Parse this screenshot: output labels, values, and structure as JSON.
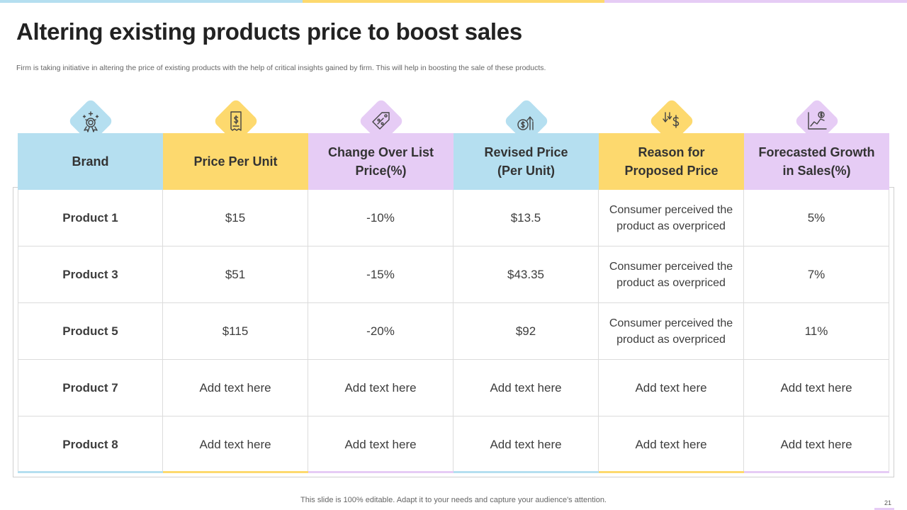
{
  "colors": {
    "blue": "#b5dff0",
    "yellow": "#fdd96e",
    "purple": "#e6ccf5",
    "icon_stroke": "#444444"
  },
  "title": "Altering existing products price to boost sales",
  "subtitle": "Firm is taking initiative in altering the price of existing products with the help of critical insights gained by firm. This will help in boosting the sale of these products.",
  "table": {
    "headers": [
      {
        "label": "Brand",
        "icon": "award-medal-icon",
        "color": "blue"
      },
      {
        "label": "Price Per Unit",
        "icon": "price-tag-receipt-icon",
        "color": "yellow"
      },
      {
        "label": "Change Over List\nPrice(%)",
        "icon": "discount-tag-icon",
        "color": "purple"
      },
      {
        "label": "Revised Price\n(Per Unit)",
        "icon": "coin-arrow-up-icon",
        "color": "blue"
      },
      {
        "label": "Reason for\nProposed  Price",
        "icon": "dollar-arrows-down-icon",
        "color": "yellow"
      },
      {
        "label": "Forecasted Growth\nin Sales(%)",
        "icon": "growth-chart-icon",
        "color": "purple"
      }
    ],
    "rows": [
      [
        "Product 1",
        "$15",
        "-10%",
        "$13.5",
        "Consumer perceived the product as overpriced",
        "5%"
      ],
      [
        "Product 3",
        "$51",
        "-15%",
        "$43.35",
        "Consumer perceived the product as overpriced",
        "7%"
      ],
      [
        "Product 5",
        "$115",
        "-20%",
        "$92",
        "Consumer perceived the product as overpriced",
        "11%"
      ],
      [
        "Product 7",
        "Add text here",
        "Add text here",
        "Add text here",
        "Add text here",
        "Add text here"
      ],
      [
        "Product 8",
        "Add text here",
        "Add text here",
        "Add text here",
        "Add text here",
        "Add text here"
      ]
    ]
  },
  "footer": "This slide is 100% editable. Adapt it to your needs and capture your audience's attention.",
  "page_number": "21"
}
